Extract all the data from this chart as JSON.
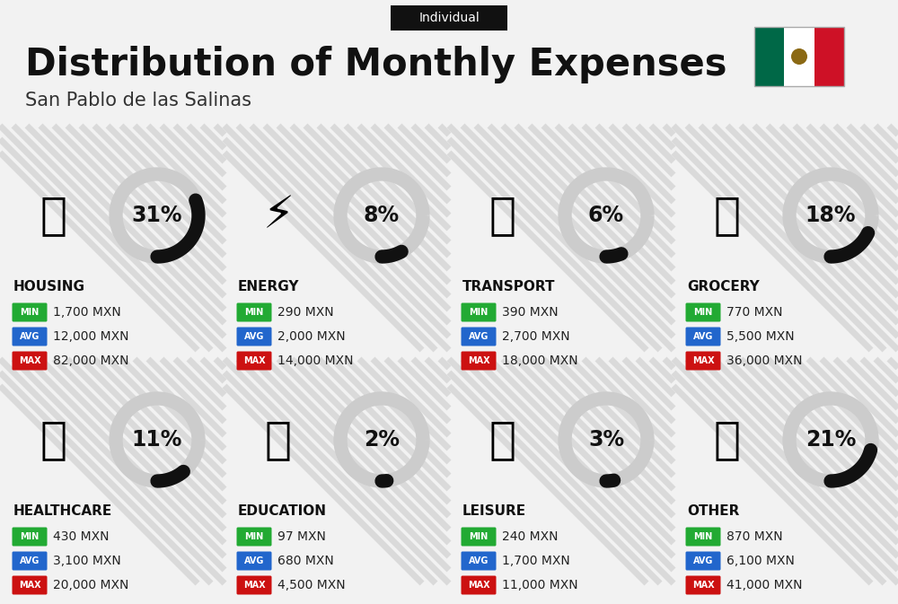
{
  "title": "Distribution of Monthly Expenses",
  "subtitle": "San Pablo de las Salinas",
  "tag": "Individual",
  "bg_color": "#f2f2f2",
  "categories": [
    {
      "name": "HOUSING",
      "pct": 31,
      "min": "1,700 MXN",
      "avg": "12,000 MXN",
      "max": "82,000 MXN",
      "row": 0,
      "col": 0
    },
    {
      "name": "ENERGY",
      "pct": 8,
      "min": "290 MXN",
      "avg": "2,000 MXN",
      "max": "14,000 MXN",
      "row": 0,
      "col": 1
    },
    {
      "name": "TRANSPORT",
      "pct": 6,
      "min": "390 MXN",
      "avg": "2,700 MXN",
      "max": "18,000 MXN",
      "row": 0,
      "col": 2
    },
    {
      "name": "GROCERY",
      "pct": 18,
      "min": "770 MXN",
      "avg": "5,500 MXN",
      "max": "36,000 MXN",
      "row": 0,
      "col": 3
    },
    {
      "name": "HEALTHCARE",
      "pct": 11,
      "min": "430 MXN",
      "avg": "3,100 MXN",
      "max": "20,000 MXN",
      "row": 1,
      "col": 0
    },
    {
      "name": "EDUCATION",
      "pct": 2,
      "min": "97 MXN",
      "avg": "680 MXN",
      "max": "4,500 MXN",
      "row": 1,
      "col": 1
    },
    {
      "name": "LEISURE",
      "pct": 3,
      "min": "240 MXN",
      "avg": "1,700 MXN",
      "max": "11,000 MXN",
      "row": 1,
      "col": 2
    },
    {
      "name": "OTHER",
      "pct": 21,
      "min": "870 MXN",
      "avg": "6,100 MXN",
      "max": "41,000 MXN",
      "row": 1,
      "col": 3
    }
  ],
  "min_color": "#22aa33",
  "avg_color": "#2266cc",
  "max_color": "#cc1111",
  "label_color": "#ffffff",
  "name_color": "#111111",
  "pct_color": "#111111",
  "arc_bg_color": "#cccccc",
  "arc_fg_color": "#111111",
  "title_fontsize": 30,
  "subtitle_fontsize": 15,
  "tag_fontsize": 10,
  "name_fontsize": 11,
  "pct_fontsize": 17,
  "value_fontsize": 10,
  "badge_label_fontsize": 7
}
